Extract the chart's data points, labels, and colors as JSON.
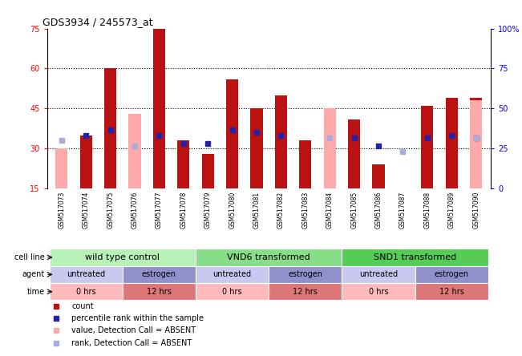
{
  "title": "GDS3934 / 245573_at",
  "samples": [
    "GSM517073",
    "GSM517074",
    "GSM517075",
    "GSM517076",
    "GSM517077",
    "GSM517078",
    "GSM517079",
    "GSM517080",
    "GSM517081",
    "GSM517082",
    "GSM517083",
    "GSM517084",
    "GSM517085",
    "GSM517086",
    "GSM517087",
    "GSM517088",
    "GSM517089",
    "GSM517090"
  ],
  "count_values": [
    0,
    35,
    60,
    0,
    75,
    33,
    28,
    56,
    45,
    50,
    33,
    0,
    41,
    24,
    0,
    46,
    49,
    49
  ],
  "count_absent": [
    30,
    0,
    0,
    43,
    0,
    0,
    0,
    0,
    0,
    0,
    0,
    45,
    0,
    0,
    15,
    0,
    0,
    48
  ],
  "rank_values": [
    0,
    35,
    37,
    0,
    35,
    32,
    32,
    37,
    36,
    35,
    0,
    0,
    34,
    31,
    0,
    34,
    35,
    34
  ],
  "rank_absent": [
    33,
    0,
    0,
    31,
    0,
    0,
    0,
    0,
    0,
    0,
    0,
    34,
    0,
    0,
    29,
    0,
    0,
    34
  ],
  "ylim": [
    15,
    75
  ],
  "yticks": [
    15,
    30,
    45,
    60,
    75
  ],
  "right_ytick_labels": [
    "0",
    "25",
    "50",
    "75",
    "100%"
  ],
  "right_ytick_vals": [
    0,
    25,
    50,
    75,
    100
  ],
  "bar_color_red": "#bb1111",
  "bar_color_pink": "#ffaaaa",
  "bar_color_blue": "#2222aa",
  "bar_color_lightblue": "#aaaadd",
  "cell_line_groups": [
    {
      "label": "wild type control",
      "start": 0,
      "end": 6,
      "color": "#b8f0b8"
    },
    {
      "label": "VND6 transformed",
      "start": 6,
      "end": 12,
      "color": "#88dd88"
    },
    {
      "label": "SND1 transformed",
      "start": 12,
      "end": 18,
      "color": "#55cc55"
    }
  ],
  "agent_groups": [
    {
      "label": "untreated",
      "start": 0,
      "end": 3,
      "color": "#c8c8f0"
    },
    {
      "label": "estrogen",
      "start": 3,
      "end": 6,
      "color": "#9090cc"
    },
    {
      "label": "untreated",
      "start": 6,
      "end": 9,
      "color": "#c8c8f0"
    },
    {
      "label": "estrogen",
      "start": 9,
      "end": 12,
      "color": "#9090cc"
    },
    {
      "label": "untreated",
      "start": 12,
      "end": 15,
      "color": "#c8c8f0"
    },
    {
      "label": "estrogen",
      "start": 15,
      "end": 18,
      "color": "#9090cc"
    }
  ],
  "time_groups": [
    {
      "label": "0 hrs",
      "start": 0,
      "end": 3,
      "color": "#ffbbbb"
    },
    {
      "label": "12 hrs",
      "start": 3,
      "end": 6,
      "color": "#dd7777"
    },
    {
      "label": "0 hrs",
      "start": 6,
      "end": 9,
      "color": "#ffbbbb"
    },
    {
      "label": "12 hrs",
      "start": 9,
      "end": 12,
      "color": "#dd7777"
    },
    {
      "label": "0 hrs",
      "start": 12,
      "end": 15,
      "color": "#ffbbbb"
    },
    {
      "label": "12 hrs",
      "start": 15,
      "end": 18,
      "color": "#dd7777"
    }
  ],
  "bg_color": "#ffffff",
  "xtick_bg": "#dddddd"
}
